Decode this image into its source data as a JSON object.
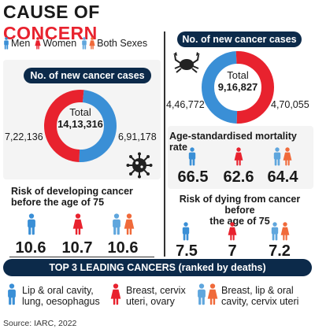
{
  "header": {
    "title_part1": "CAUSE OF",
    "title_part2": "CONCERN"
  },
  "legend": {
    "men": "Men",
    "women": "Women",
    "both": "Both Sexes"
  },
  "colors": {
    "men": "#3a8fd6",
    "women": "#e8222e",
    "both_men": "#5fa6dd",
    "both_women": "#f06a3a",
    "dark": "#0c2a4a",
    "panel": "#f4f4f4"
  },
  "icons": {
    "men": "man-icon",
    "women": "woman-icon",
    "virus": "virus-icon",
    "crab": "crab-icon"
  },
  "left_panel": {
    "cases_heading": "No. of new cancer cases",
    "total_label": "Total",
    "total_value": "14,13,316",
    "women_label": "7,22,136",
    "men_label": "6,91,178",
    "risk_heading_line1": "Risk of developing cancer",
    "risk_heading_line2": "before the age of 75",
    "risk_values": {
      "men": "10.6",
      "women": "10.7",
      "both": "10.6"
    }
  },
  "right_panel": {
    "cases_heading": "No. of new cancer cases",
    "total_label": "Total",
    "total_value": "9,16,827",
    "men_label": "4,46,772",
    "women_label": "4,70,055",
    "mortality_heading": "Age-standardised mortality rate",
    "mortality_values": {
      "men": "66.5",
      "women": "62.6",
      "both": "64.4"
    },
    "dying_heading_line1": "Risk of dying from cancer before",
    "dying_heading_line2": "the age of 75",
    "dying_values": {
      "men": "7.5",
      "women": "7",
      "both": "7.2"
    }
  },
  "top3": {
    "heading": "TOP 3 LEADING CANCERS (ranked by deaths)",
    "men_line1": "Lip & oral cavity,",
    "men_line2": "lung, oesophagus",
    "women_line1": "Breast, cervix",
    "women_line2": "uteri, ovary",
    "both_line1": "Breast, lip & oral",
    "both_line2": "cavity, cervix uteri"
  },
  "source": "Source: IARC, 2022",
  "chart_data": [
    {
      "type": "pie",
      "title": "No. of new cancer cases",
      "categories": [
        "Women",
        "Men"
      ],
      "values": [
        722136,
        691178
      ],
      "total": 1413316
    },
    {
      "type": "pie",
      "title": "No. of new cancer cases",
      "categories": [
        "Men",
        "Women"
      ],
      "values": [
        446772,
        470055
      ],
      "total": 916827
    },
    {
      "type": "bar",
      "title": "Risk of developing cancer before the age of 75",
      "categories": [
        "Men",
        "Women",
        "Both Sexes"
      ],
      "values": [
        10.6,
        10.7,
        10.6
      ]
    },
    {
      "type": "bar",
      "title": "Age-standardised mortality rate",
      "categories": [
        "Men",
        "Women",
        "Both Sexes"
      ],
      "values": [
        66.5,
        62.6,
        64.4
      ]
    },
    {
      "type": "bar",
      "title": "Risk of dying from cancer before the age of 75",
      "categories": [
        "Men",
        "Women",
        "Both Sexes"
      ],
      "values": [
        7.5,
        7,
        7.2
      ]
    }
  ]
}
